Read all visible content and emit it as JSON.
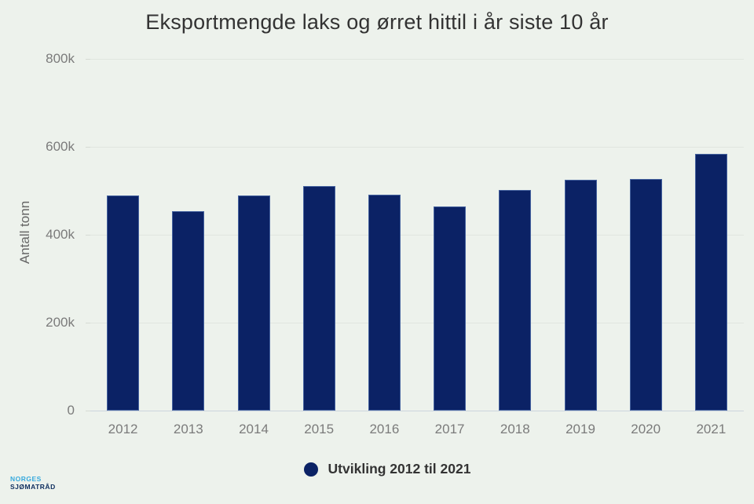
{
  "title": "Eksportmengde laks og ørret hittil i år siste 10 år",
  "y_axis_title": "Antall tonn",
  "legend": {
    "label": "Utvikling 2012 til 2021"
  },
  "logo": {
    "line1": "NORGES",
    "line2": "SJØMATRÅD"
  },
  "colors": {
    "background": "#edf2ec",
    "bar": "#0b2265",
    "bar_border": "#46639f",
    "gridline": "#e0e6df",
    "axis_line": "#ccd5dd",
    "tick": "#d6dbd4",
    "label": "#7b7b7b",
    "title": "#333333",
    "legend_text": "#333333",
    "logo_blue": "#36a9dd",
    "logo_navy": "#0d2d5e"
  },
  "chart_data": {
    "type": "bar",
    "title": "Eksportmengde laks og ørret hittil i år siste 10 år",
    "xlabel": "",
    "ylabel": "Antall tonn",
    "categories": [
      "2012",
      "2013",
      "2014",
      "2015",
      "2016",
      "2017",
      "2018",
      "2019",
      "2020",
      "2021"
    ],
    "values": [
      489000,
      454000,
      489000,
      510000,
      491000,
      464000,
      502000,
      525000,
      527000,
      584000
    ],
    "unit": "tonn",
    "ylim": [
      0,
      800000
    ],
    "ytick_values": [
      0,
      200000,
      400000,
      600000,
      800000
    ],
    "ytick_labels": [
      "0",
      "200k",
      "400k",
      "600k",
      "800k"
    ],
    "grid": true,
    "legend_position": "bottom",
    "series_name": "Utvikling 2012 til 2021"
  }
}
